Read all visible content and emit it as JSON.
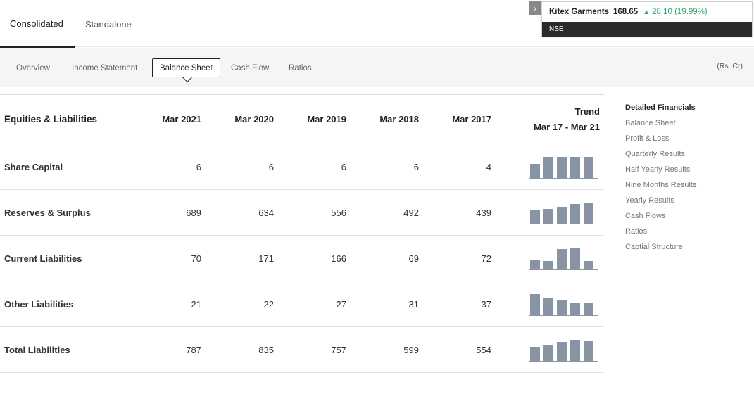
{
  "top_tabs": {
    "consolidated": "Consolidated",
    "standalone": "Standalone"
  },
  "ticker": {
    "name": "Kitex Garments",
    "price": "168.65",
    "change": "28.10 (19.99%)",
    "exchange": "NSE",
    "up_icon": "triangle-up-icon",
    "arrow_icon": "chevron-right-icon",
    "up_color": "#2ea86b"
  },
  "subnav": {
    "items": [
      "Overview",
      "Income Statement",
      "Balance Sheet",
      "Cash Flow",
      "Ratios"
    ],
    "active": "Balance Sheet",
    "unit": "(Rs. Cr)"
  },
  "table": {
    "header": {
      "label": "Equities & Liabilities",
      "cols": [
        "Mar 2021",
        "Mar 2020",
        "Mar 2019",
        "Mar 2018",
        "Mar 2017"
      ],
      "trend": "Trend",
      "trend_range": "Mar 17 - Mar 21"
    },
    "rows": [
      {
        "label": "Share Capital",
        "values": [
          "6",
          "6",
          "6",
          "6",
          "4"
        ]
      },
      {
        "label": "Reserves & Surplus",
        "values": [
          "689",
          "634",
          "556",
          "492",
          "439"
        ]
      },
      {
        "label": "Current Liabilities",
        "values": [
          "70",
          "171",
          "166",
          "69",
          "72"
        ]
      },
      {
        "label": "Other Liabilities",
        "values": [
          "21",
          "22",
          "27",
          "31",
          "37"
        ]
      },
      {
        "label": "Total Liabilities",
        "values": [
          "787",
          "835",
          "757",
          "599",
          "554"
        ]
      }
    ]
  },
  "sidebar": {
    "title": "Detailed Financials",
    "links": [
      "Balance Sheet",
      "Profit & Loss",
      "Quarterly Results",
      "Half Yearly Results",
      "Nine Months Results",
      "Yearly Results",
      "Cash Flows",
      "Ratios",
      "Captial Structure"
    ]
  }
}
